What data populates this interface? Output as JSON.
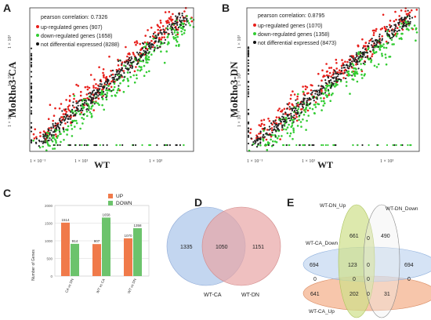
{
  "panels": {
    "A": {
      "letter": "A",
      "ylabel": "MoRho3-CA",
      "xlabel": "WT",
      "legend": [
        {
          "label": "pearson correlation: 0.7326",
          "color": ""
        },
        {
          "label": "up-regulated genes (907)",
          "color": "#e8201c"
        },
        {
          "label": "down-regulated genes (1658)",
          "color": "#33cc33"
        },
        {
          "label": "not differential expressed (8288)",
          "color": "#111111"
        }
      ],
      "xticks": [
        "1 × 10⁻¹",
        "1 × 10¹",
        "1 × 10³"
      ],
      "yticks": [
        "1 × 10³",
        "1 × 10¹",
        "1 × 10⁻¹"
      ]
    },
    "B": {
      "letter": "B",
      "ylabel": "MoRho3-DN",
      "xlabel": "WT",
      "legend": [
        {
          "label": "pearson correlation: 0.8795",
          "color": ""
        },
        {
          "label": "up-regulated genes (1070)",
          "color": "#e8201c"
        },
        {
          "label": "down-regulated genes (1358)",
          "color": "#33cc33"
        },
        {
          "label": "not differential expressed (8473)",
          "color": "#111111"
        }
      ],
      "xticks": [
        "1 × 10⁻¹",
        "1 × 10¹",
        "1 × 10³"
      ],
      "yticks": [
        "1 × 10³",
        "1 × 10¹",
        "1 × 10⁻¹"
      ]
    },
    "C": {
      "letter": "C"
    },
    "D": {
      "letter": "D",
      "left_only": "1335",
      "overlap": "1050",
      "right_only": "1151",
      "left_label": "WT-CA",
      "right_label": "WT-DN",
      "left_color": "#a9c4ea",
      "right_color": "#e8a5a5"
    },
    "E": {
      "letter": "E",
      "set_labels": {
        "dn_up": "WT-DN_Up",
        "dn_down": "WT-DN_Down",
        "ca_down": "WT-CA_Down",
        "ca_up": "WT-CA_Up"
      },
      "counts": {
        "r1_a": "661",
        "r1_b": "0",
        "r1_c": "490",
        "r2_a": "694",
        "r2_b": "123",
        "r2_c": "0",
        "r2_d": "694",
        "r3_a": "0",
        "r3_b": "0",
        "r3_c": "0",
        "r3_d": "0",
        "r4_a": "641",
        "r4_b": "202",
        "r4_c": "0",
        "r4_d": "31"
      },
      "colors": {
        "dn_up": "#cfe08a",
        "dn_down": "#eeeeee",
        "ca_down": "#b9d0ee",
        "ca_up": "#f4b38f"
      }
    }
  },
  "chart_data": [
    {
      "type": "bar",
      "title": "",
      "ylabel": "Number of Genes",
      "xlabel": "",
      "ylim": [
        0,
        2000
      ],
      "yticks": [
        0,
        500,
        1000,
        1500,
        2000
      ],
      "categories": [
        "CA vs DN",
        "WT vs CA",
        "WT vs DN"
      ],
      "series": [
        {
          "name": "UP",
          "color": "#f07a4a",
          "values": [
            1514,
            907,
            1070
          ]
        },
        {
          "name": "DOWN",
          "color": "#6cc36c",
          "values": [
            914,
            1658,
            1358
          ]
        }
      ],
      "legend": "top-right"
    }
  ]
}
